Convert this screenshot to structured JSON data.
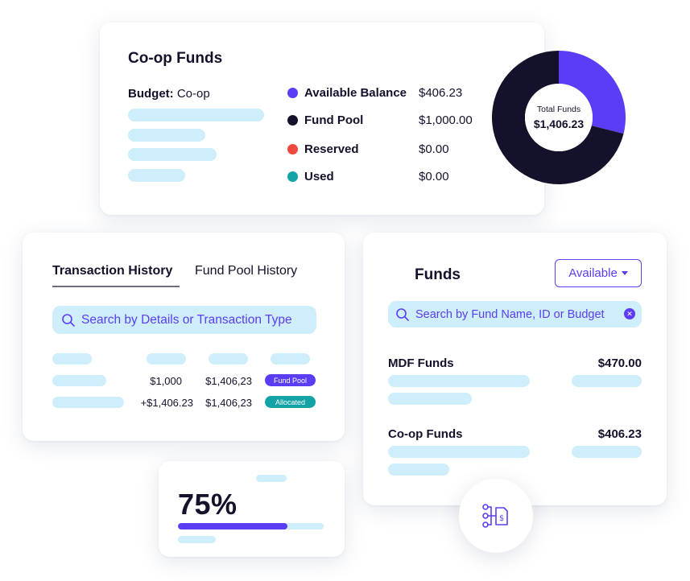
{
  "colors": {
    "accent": "#5b3df5",
    "dark": "#14112b",
    "red": "#f0473f",
    "teal": "#13a3a6",
    "placeholder": "#cdeefa"
  },
  "coop_card": {
    "title": "Co-op Funds",
    "budget_label": "Budget:",
    "budget_value": "Co-op",
    "legend": [
      {
        "label": "Available Balance",
        "value": "$406.23",
        "color": "#5b3df5"
      },
      {
        "label": "Fund Pool",
        "value": "$1,000.00",
        "color": "#14112b"
      },
      {
        "label": "Reserved",
        "value": "$0.00",
        "color": "#f0473f"
      },
      {
        "label": "Used",
        "value": "$0.00",
        "color": "#13a3a6"
      }
    ],
    "donut": {
      "center_label": "Total Funds",
      "center_value": "$1,406.23",
      "segments": [
        {
          "name": "Available Balance",
          "amount": 406.23,
          "color": "#5b3df5"
        },
        {
          "name": "Fund Pool",
          "amount": 1000.0,
          "color": "#14112b"
        }
      ]
    }
  },
  "transactions_card": {
    "tabs": [
      {
        "label": "Transaction History",
        "active": true
      },
      {
        "label": "Fund Pool History",
        "active": false
      }
    ],
    "search_placeholder": "Search by Details or Transaction Type",
    "rows": [
      {
        "amount": "$1,000",
        "balance": "$1,406,23",
        "badge": "Fund Pool",
        "badge_color": "#5b3df5"
      },
      {
        "amount": "+$1,406.23",
        "balance": "$1,406,23",
        "badge": "Allocated",
        "badge_color": "#13a3a6"
      }
    ]
  },
  "funds_card": {
    "title": "Funds",
    "filter_value": "Available",
    "search_placeholder": "Search by Fund Name, ID or Budget",
    "funds": [
      {
        "name": "MDF Funds",
        "amount": "$470.00"
      },
      {
        "name": "Co-op Funds",
        "amount": "$406.23"
      }
    ]
  },
  "progress_card": {
    "percent_label": "75%",
    "progress": 0.75
  },
  "hub_icon": "fund-hierarchy-icon"
}
